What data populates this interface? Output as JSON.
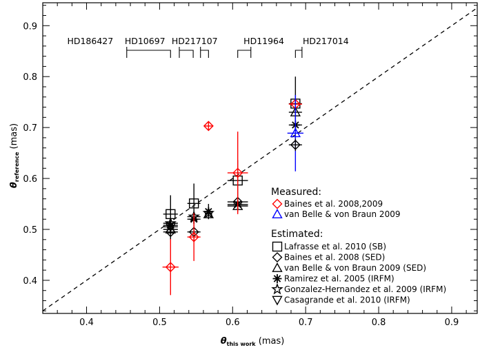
{
  "chart_data": {
    "type": "scatter",
    "xlabel_main": "θ",
    "xlabel_sub": "this work",
    "xlabel_unit": " (mas)",
    "ylabel_main": "θ",
    "ylabel_sub": "reference",
    "ylabel_unit": " (mas)",
    "xlim": [
      0.34,
      0.935
    ],
    "ylim": [
      0.335,
      0.945
    ],
    "xticks": [
      0.4,
      0.5,
      0.6,
      0.7,
      0.8,
      0.9
    ],
    "yticks": [
      0.4,
      0.5,
      0.6,
      0.7,
      0.8,
      0.9
    ],
    "x_minor_step": 0.02,
    "y_minor_step": 0.02,
    "reference_line": "y = x (dashed)",
    "star_labels": [
      {
        "name": "HD186427",
        "bracket": [
          0.455,
          0.515
        ],
        "label_x": 0.405,
        "side": "left"
      },
      {
        "name": "HD10697",
        "bracket": [
          0.527,
          0.546
        ],
        "label_x": 0.48,
        "side": "left"
      },
      {
        "name": "HD217107",
        "bracket": [
          0.556,
          0.567
        ],
        "label_x": 0.548,
        "side": "left"
      },
      {
        "name": "HD11964",
        "bracket": [
          0.607,
          0.625
        ],
        "label_x": 0.615,
        "side": "right"
      },
      {
        "name": "HD217014",
        "bracket": [
          0.686,
          0.695
        ],
        "label_x": 0.696,
        "side": "right"
      }
    ],
    "legend": {
      "measured_title": "Measured:",
      "measured": [
        {
          "name": "Baines et al. 2008,2009",
          "symbol": "diamond",
          "color": "#ff0000"
        },
        {
          "name": "van Belle & von Braun 2009",
          "symbol": "triangle",
          "color": "#0000ff"
        }
      ],
      "estimated_title": "Estimated:",
      "estimated": [
        {
          "name": "Lafrasse et al. 2010 (SB)",
          "symbol": "square",
          "color": "#000000"
        },
        {
          "name": "Baines et al. 2008 (SED)",
          "symbol": "diamond",
          "color": "#000000"
        },
        {
          "name": "van Belle & von Braun 2009 (SED)",
          "symbol": "triangle",
          "color": "#000000"
        },
        {
          "name": "Ramirez et al. 2005 (IRFM)",
          "symbol": "asterisk",
          "color": "#000000"
        },
        {
          "name": "Gonzalez-Hernandez et al. 2009 (IRFM)",
          "symbol": "star",
          "color": "#000000"
        },
        {
          "name": "Casagrande et al. 2010 (IRFM)",
          "symbol": "triangle-down",
          "color": "#000000"
        }
      ]
    },
    "points": [
      {
        "star": "HD186427",
        "x": 0.515,
        "xerr": 0.01,
        "y": 0.53,
        "yerr": 0.037,
        "symbol": "square",
        "color": "#000000"
      },
      {
        "star": "HD186427",
        "x": 0.515,
        "xerr": 0.01,
        "y": 0.512,
        "yerr": 0.0,
        "symbol": "star",
        "color": "#000000"
      },
      {
        "star": "HD186427",
        "x": 0.515,
        "xerr": 0.01,
        "y": 0.508,
        "yerr": 0.0,
        "symbol": "asterisk",
        "color": "#000000"
      },
      {
        "star": "HD186427",
        "x": 0.515,
        "xerr": 0.01,
        "y": 0.505,
        "yerr": 0.0,
        "symbol": "triangle-down",
        "color": "#000000"
      },
      {
        "star": "HD186427",
        "x": 0.515,
        "xerr": 0.01,
        "y": 0.5,
        "yerr": 0.0,
        "symbol": "triangle",
        "color": "#000000"
      },
      {
        "star": "HD186427",
        "x": 0.515,
        "xerr": 0.01,
        "y": 0.495,
        "yerr": 0.015,
        "symbol": "diamond",
        "color": "#000000"
      },
      {
        "star": "HD186427",
        "x": 0.515,
        "xerr": 0.011,
        "y": 0.426,
        "yerr": 0.055,
        "symbol": "diamond",
        "color": "#ff0000"
      },
      {
        "star": "HD10697",
        "x": 0.547,
        "xerr": 0.009,
        "y": 0.551,
        "yerr": 0.039,
        "symbol": "square",
        "color": "#000000"
      },
      {
        "star": "HD10697",
        "x": 0.547,
        "xerr": 0.009,
        "y": 0.525,
        "yerr": 0.0,
        "symbol": "star",
        "color": "#000000"
      },
      {
        "star": "HD10697",
        "x": 0.547,
        "xerr": 0.009,
        "y": 0.52,
        "yerr": 0.0,
        "symbol": "asterisk",
        "color": "#000000"
      },
      {
        "star": "HD10697",
        "x": 0.547,
        "xerr": 0.009,
        "y": 0.495,
        "yerr": 0.019,
        "symbol": "diamond",
        "color": "#000000"
      },
      {
        "star": "HD10697",
        "x": 0.547,
        "xerr": 0.009,
        "y": 0.485,
        "yerr": 0.047,
        "symbol": "diamond",
        "color": "#ff0000"
      },
      {
        "star": "HD217107",
        "x": 0.567,
        "xerr": 0.005,
        "y": 0.535,
        "yerr": 0.015,
        "symbol": "asterisk",
        "color": "#000000"
      },
      {
        "star": "HD217107",
        "x": 0.567,
        "xerr": 0.005,
        "y": 0.532,
        "yerr": 0.0,
        "symbol": "star",
        "color": "#000000"
      },
      {
        "star": "HD217107",
        "x": 0.567,
        "xerr": 0.005,
        "y": 0.53,
        "yerr": 0.0,
        "symbol": "triangle",
        "color": "#000000"
      },
      {
        "star": "HD217107",
        "x": 0.567,
        "xerr": 0.006,
        "y": 0.703,
        "yerr": 0.009,
        "symbol": "diamond",
        "color": "#ff0000"
      },
      {
        "star": "HD11964",
        "x": 0.607,
        "xerr": 0.014,
        "y": 0.596,
        "yerr": 0.04,
        "symbol": "square",
        "color": "#000000"
      },
      {
        "star": "HD11964",
        "x": 0.607,
        "xerr": 0.014,
        "y": 0.554,
        "yerr": 0.02,
        "symbol": "diamond",
        "color": "#000000"
      },
      {
        "star": "HD11964",
        "x": 0.607,
        "xerr": 0.014,
        "y": 0.549,
        "yerr": 0.0,
        "symbol": "asterisk",
        "color": "#000000"
      },
      {
        "star": "HD11964",
        "x": 0.607,
        "xerr": 0.014,
        "y": 0.546,
        "yerr": 0.0,
        "symbol": "triangle",
        "color": "#000000"
      },
      {
        "star": "HD11964",
        "x": 0.607,
        "xerr": 0.014,
        "y": 0.611,
        "yerr": 0.081,
        "symbol": "diamond",
        "color": "#ff0000"
      },
      {
        "star": "HD217014",
        "x": 0.686,
        "xerr": 0.009,
        "y": 0.747,
        "yerr": 0.053,
        "symbol": "square",
        "color": "#000000"
      },
      {
        "star": "HD217014",
        "x": 0.686,
        "xerr": 0.009,
        "y": 0.746,
        "yerr": 0.0,
        "symbol": "diamond",
        "color": "#ff0000"
      },
      {
        "star": "HD217014",
        "x": 0.686,
        "xerr": 0.009,
        "y": 0.73,
        "yerr": 0.0,
        "symbol": "triangle",
        "color": "#000000"
      },
      {
        "star": "HD217014",
        "x": 0.686,
        "xerr": 0.009,
        "y": 0.705,
        "yerr": 0.0,
        "symbol": "asterisk",
        "color": "#000000"
      },
      {
        "star": "HD217014",
        "x": 0.686,
        "xerr": 0.011,
        "y": 0.689,
        "yerr": 0.075,
        "symbol": "triangle",
        "color": "#0000ff"
      },
      {
        "star": "HD217014",
        "x": 0.686,
        "xerr": 0.009,
        "y": 0.666,
        "yerr": 0.012,
        "symbol": "diamond",
        "color": "#000000"
      }
    ]
  }
}
